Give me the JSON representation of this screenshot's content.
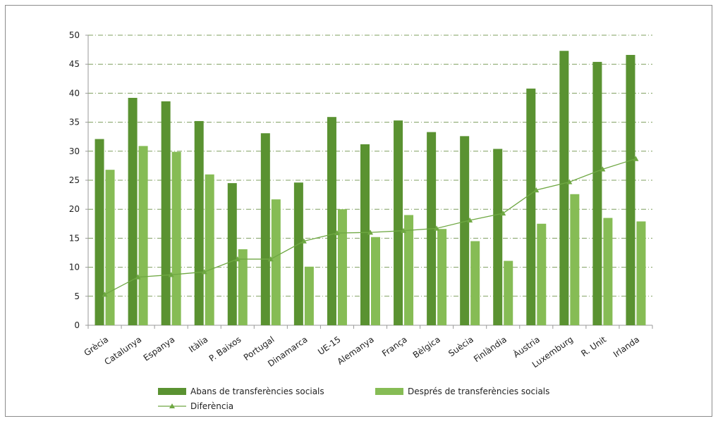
{
  "colors": {
    "before": "#5a9231",
    "after": "#86bc55",
    "difference": "#6fa843",
    "grid": "#7f9f5f",
    "axis": "#9a9a9a"
  },
  "chart_data": {
    "type": "bar",
    "categories": [
      "Grècia",
      "Catalunya",
      "Espanya",
      "Itàlia",
      "P. Baixos",
      "Portugal",
      "Dinamarca",
      "UE-15",
      "Alemanya",
      "França",
      "Bèlgica",
      "Suècia",
      "Finlàndia",
      "Àustria",
      "Luxemburg",
      "R. Unit",
      "Irlanda"
    ],
    "series": [
      {
        "name": "Abans de transferències socials",
        "kind": "bar",
        "values": [
          32.1,
          39.2,
          38.6,
          35.2,
          24.5,
          33.1,
          24.6,
          35.9,
          31.2,
          35.3,
          33.3,
          32.6,
          30.4,
          40.8,
          47.3,
          45.4,
          46.6
        ]
      },
      {
        "name": "Després de transferències socials",
        "kind": "bar",
        "values": [
          26.8,
          30.9,
          29.9,
          26.0,
          13.1,
          21.7,
          10.1,
          20.0,
          15.2,
          19.0,
          16.6,
          14.5,
          11.1,
          17.5,
          22.6,
          18.5,
          17.9
        ]
      },
      {
        "name": "Diferència",
        "kind": "line",
        "values": [
          5.3,
          8.3,
          8.7,
          9.2,
          11.4,
          11.4,
          14.5,
          15.9,
          16.0,
          16.3,
          16.7,
          18.1,
          19.3,
          23.3,
          24.7,
          26.9,
          28.7
        ]
      }
    ],
    "ylim": [
      0,
      50
    ],
    "yticks": [
      0,
      5,
      10,
      15,
      20,
      25,
      30,
      35,
      40,
      45,
      50
    ],
    "grid": true,
    "legend_position": "bottom"
  }
}
